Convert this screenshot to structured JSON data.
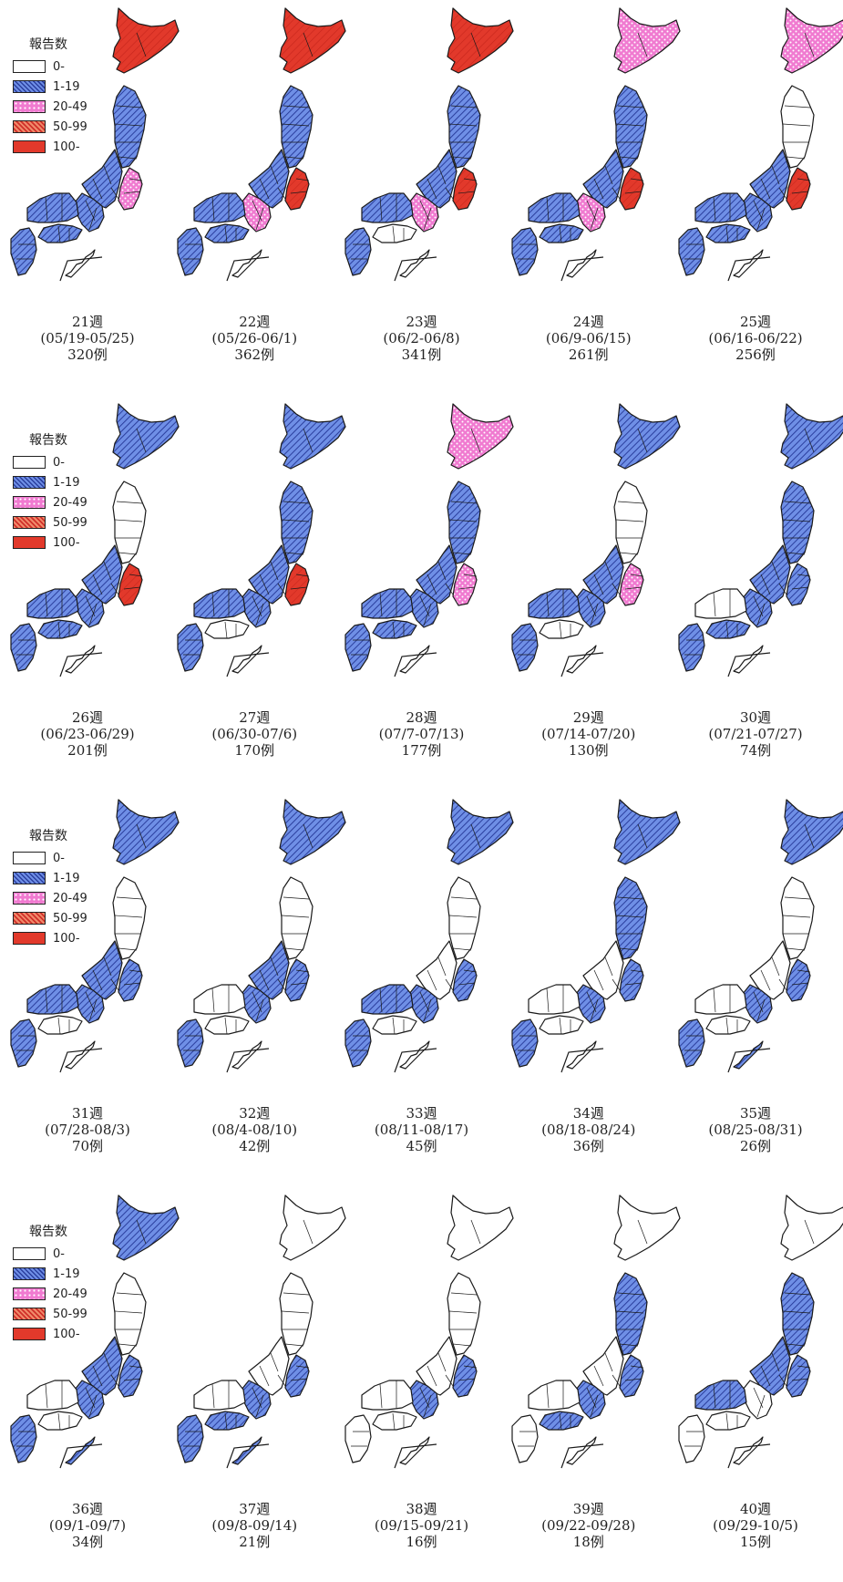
{
  "legend": {
    "title": "報告数",
    "items": [
      {
        "label": "0-",
        "category": 0,
        "pattern": "white",
        "color": "#ffffff"
      },
      {
        "label": "1-19",
        "category": 1,
        "pattern": "blue-hatch",
        "color": "#4f6fd0"
      },
      {
        "label": "20-49",
        "category": 2,
        "pattern": "pink-dots",
        "color": "#f07ad0"
      },
      {
        "label": "50-99",
        "category": 3,
        "pattern": "red-hatch",
        "color": "#e0503a"
      },
      {
        "label": "100-",
        "category": 4,
        "pattern": "solid-red",
        "color": "#e2392b"
      }
    ]
  },
  "maps": [
    {
      "week": "21週",
      "range": "(05/19-05/25)",
      "count": "320例",
      "levels": {
        "hokkaido": 4,
        "tohoku": 1,
        "kanto": 2,
        "chubu": 1,
        "kinki": 1,
        "chugoku": 1,
        "shikoku": 1,
        "kyushu": 1,
        "okinawa": 0
      }
    },
    {
      "week": "22週",
      "range": "(05/26-06/1)",
      "count": "362例",
      "levels": {
        "hokkaido": 4,
        "tohoku": 1,
        "kanto": 4,
        "chubu": 1,
        "kinki": 2,
        "chugoku": 1,
        "shikoku": 1,
        "kyushu": 1,
        "okinawa": 0
      }
    },
    {
      "week": "23週",
      "range": "(06/2-06/8)",
      "count": "341例",
      "levels": {
        "hokkaido": 4,
        "tohoku": 1,
        "kanto": 4,
        "chubu": 1,
        "kinki": 2,
        "chugoku": 1,
        "shikoku": 0,
        "kyushu": 1,
        "okinawa": 0
      }
    },
    {
      "week": "24週",
      "range": "(06/9-06/15)",
      "count": "261例",
      "levels": {
        "hokkaido": 2,
        "tohoku": 1,
        "kanto": 4,
        "chubu": 1,
        "kinki": 2,
        "chugoku": 1,
        "shikoku": 1,
        "kyushu": 1,
        "okinawa": 0
      }
    },
    {
      "week": "25週",
      "range": "(06/16-06/22)",
      "count": "256例",
      "levels": {
        "hokkaido": 2,
        "tohoku": 0,
        "kanto": 4,
        "chubu": 1,
        "kinki": 1,
        "chugoku": 1,
        "shikoku": 1,
        "kyushu": 1,
        "okinawa": 0
      }
    },
    {
      "week": "26週",
      "range": "(06/23-06/29)",
      "count": "201例",
      "levels": {
        "hokkaido": 1,
        "tohoku": 0,
        "kanto": 4,
        "chubu": 1,
        "kinki": 1,
        "chugoku": 1,
        "shikoku": 1,
        "kyushu": 1,
        "okinawa": 0
      }
    },
    {
      "week": "27週",
      "range": "(06/30-07/6)",
      "count": "170例",
      "levels": {
        "hokkaido": 1,
        "tohoku": 1,
        "kanto": 4,
        "chubu": 1,
        "kinki": 1,
        "chugoku": 1,
        "shikoku": 0,
        "kyushu": 1,
        "okinawa": 0
      }
    },
    {
      "week": "28週",
      "range": "(07/7-07/13)",
      "count": "177例",
      "levels": {
        "hokkaido": 2,
        "tohoku": 1,
        "kanto": 2,
        "chubu": 1,
        "kinki": 1,
        "chugoku": 1,
        "shikoku": 1,
        "kyushu": 1,
        "okinawa": 0
      }
    },
    {
      "week": "29週",
      "range": "(07/14-07/20)",
      "count": "130例",
      "levels": {
        "hokkaido": 1,
        "tohoku": 0,
        "kanto": 2,
        "chubu": 1,
        "kinki": 1,
        "chugoku": 1,
        "shikoku": 0,
        "kyushu": 1,
        "okinawa": 0
      }
    },
    {
      "week": "30週",
      "range": "(07/21-07/27)",
      "count": "74例",
      "levels": {
        "hokkaido": 1,
        "tohoku": 1,
        "kanto": 1,
        "chubu": 1,
        "kinki": 1,
        "chugoku": 0,
        "shikoku": 1,
        "kyushu": 1,
        "okinawa": 0
      }
    },
    {
      "week": "31週",
      "range": "(07/28-08/3)",
      "count": "70例",
      "levels": {
        "hokkaido": 1,
        "tohoku": 0,
        "kanto": 1,
        "chubu": 1,
        "kinki": 1,
        "chugoku": 1,
        "shikoku": 0,
        "kyushu": 1,
        "okinawa": 0
      }
    },
    {
      "week": "32週",
      "range": "(08/4-08/10)",
      "count": "42例",
      "levels": {
        "hokkaido": 1,
        "tohoku": 0,
        "kanto": 1,
        "chubu": 1,
        "kinki": 1,
        "chugoku": 0,
        "shikoku": 0,
        "kyushu": 1,
        "okinawa": 0
      }
    },
    {
      "week": "33週",
      "range": "(08/11-08/17)",
      "count": "45例",
      "levels": {
        "hokkaido": 1,
        "tohoku": 0,
        "kanto": 1,
        "chubu": 0,
        "kinki": 1,
        "chugoku": 1,
        "shikoku": 0,
        "kyushu": 1,
        "okinawa": 0
      }
    },
    {
      "week": "34週",
      "range": "(08/18-08/24)",
      "count": "36例",
      "levels": {
        "hokkaido": 1,
        "tohoku": 1,
        "kanto": 1,
        "chubu": 0,
        "kinki": 1,
        "chugoku": 0,
        "shikoku": 0,
        "kyushu": 1,
        "okinawa": 0
      }
    },
    {
      "week": "35週",
      "range": "(08/25-08/31)",
      "count": "26例",
      "levels": {
        "hokkaido": 1,
        "tohoku": 0,
        "kanto": 1,
        "chubu": 0,
        "kinki": 1,
        "chugoku": 0,
        "shikoku": 0,
        "kyushu": 1,
        "okinawa": 1
      }
    },
    {
      "week": "36週",
      "range": "(09/1-09/7)",
      "count": "34例",
      "levels": {
        "hokkaido": 1,
        "tohoku": 0,
        "kanto": 1,
        "chubu": 1,
        "kinki": 1,
        "chugoku": 0,
        "shikoku": 0,
        "kyushu": 1,
        "okinawa": 1
      }
    },
    {
      "week": "37週",
      "range": "(09/8-09/14)",
      "count": "21例",
      "levels": {
        "hokkaido": 0,
        "tohoku": 0,
        "kanto": 1,
        "chubu": 0,
        "kinki": 1,
        "chugoku": 0,
        "shikoku": 1,
        "kyushu": 1,
        "okinawa": 1
      }
    },
    {
      "week": "38週",
      "range": "(09/15-09/21)",
      "count": "16例",
      "levels": {
        "hokkaido": 0,
        "tohoku": 0,
        "kanto": 1,
        "chubu": 0,
        "kinki": 1,
        "chugoku": 0,
        "shikoku": 0,
        "kyushu": 0,
        "okinawa": 0
      }
    },
    {
      "week": "39週",
      "range": "(09/22-09/28)",
      "count": "18例",
      "levels": {
        "hokkaido": 0,
        "tohoku": 1,
        "kanto": 1,
        "chubu": 0,
        "kinki": 1,
        "chugoku": 0,
        "shikoku": 1,
        "kyushu": 0,
        "okinawa": 0
      }
    },
    {
      "week": "40週",
      "range": "(09/29-10/5)",
      "count": "15例",
      "levels": {
        "hokkaido": 0,
        "tohoku": 1,
        "kanto": 1,
        "chubu": 1,
        "kinki": 0,
        "chugoku": 1,
        "shikoku": 0,
        "kyushu": 0,
        "okinawa": 0
      }
    }
  ]
}
